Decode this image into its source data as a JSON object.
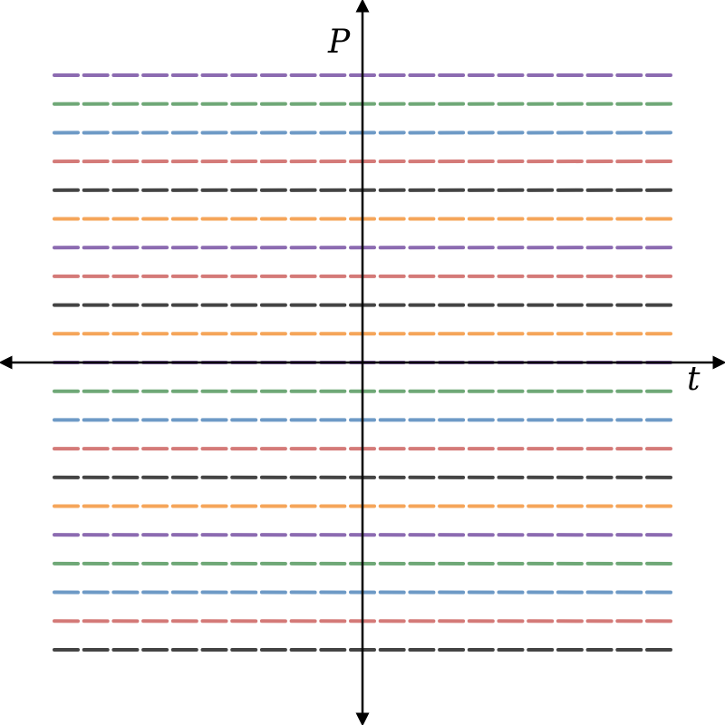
{
  "chart_data": {
    "type": "line",
    "title": "",
    "xlabel": "t",
    "ylabel": "P",
    "xlim": [
      -1.03,
      1.03
    ],
    "ylim": [
      -1.26,
      1.26
    ],
    "grid": false,
    "legend": "none",
    "description_of_field": "slope field",
    "field": {
      "x_values": [
        -1.0,
        -0.9,
        -0.8,
        -0.7,
        -0.6,
        -0.5,
        -0.4,
        -0.3,
        -0.2,
        -0.1,
        0.0,
        0.1,
        0.2,
        0.3,
        0.4,
        0.5,
        0.6,
        0.7,
        0.8,
        0.9,
        1.0
      ],
      "y_values": [
        1.0,
        0.9,
        0.8,
        0.7,
        0.6,
        0.5,
        0.4,
        0.3,
        0.2,
        0.1,
        0.0,
        -0.1,
        -0.2,
        -0.3,
        -0.4,
        -0.5,
        -0.6,
        -0.7,
        -0.8,
        -0.9,
        -1.0
      ],
      "slopes": [
        0.003,
        0.004,
        0.006,
        0.006,
        0.005,
        0.004,
        0.003,
        0.002,
        0.001,
        0.0,
        0.0,
        0.0,
        -0.001,
        -0.002,
        -0.003,
        -0.004,
        -0.005,
        -0.006,
        -0.006,
        -0.004,
        -0.003
      ],
      "row_colors": [
        "#8c6bb1",
        "#6fa877",
        "#6e9ac6",
        "#d47a78",
        "#444444",
        "#f5a55a",
        "#8c6bb1",
        "#d47a78",
        "#444444",
        "#f5a55a",
        "#8c6bb1",
        "#6fa877",
        "#6e9ac6",
        "#d47a78",
        "#444444",
        "#f5a55a",
        "#8c6bb1",
        "#6fa877",
        "#6e9ac6",
        "#d47a78",
        "#444444"
      ]
    }
  }
}
